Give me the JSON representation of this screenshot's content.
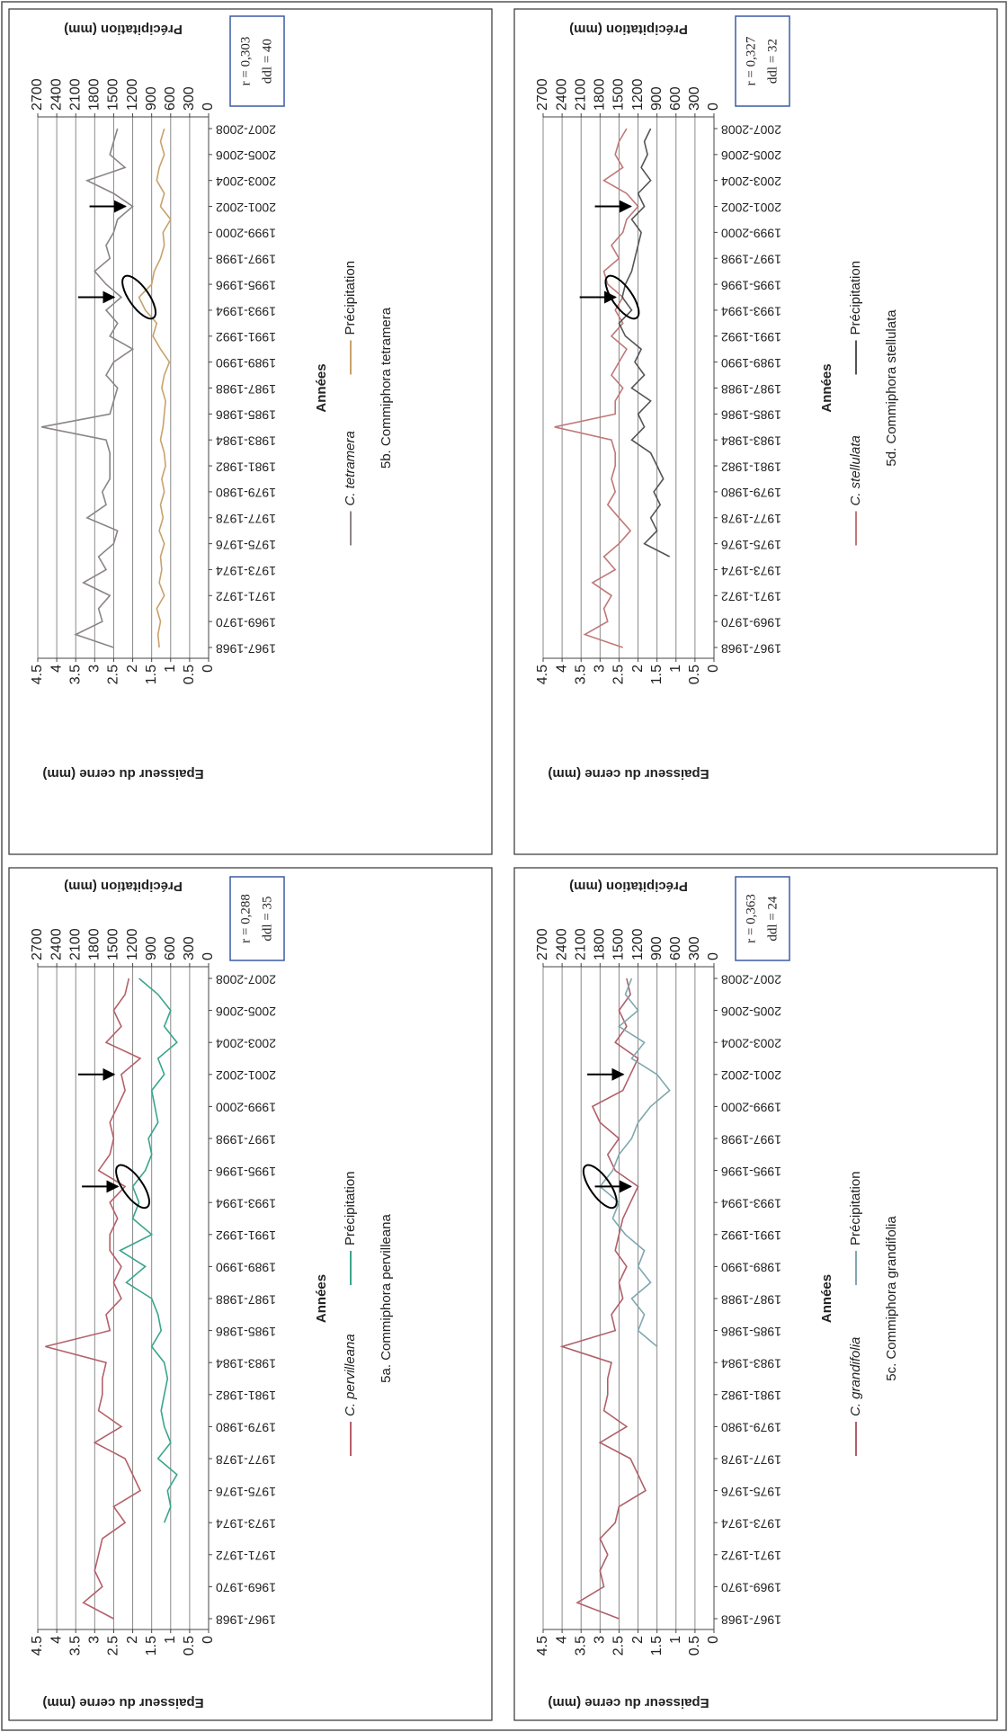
{
  "chart_data": [
    {
      "type": "line",
      "title": "5a. Commiphora pervilleana",
      "x_label": "Années",
      "y_label": "Epaisseur du cerne (mm)",
      "y2_label": "Précipitation (mm)",
      "annotations": [
        "r = 0,288",
        "ddl = 35"
      ],
      "categories": [
        "1967-1968",
        null,
        "1969-1970",
        null,
        "1971-1972",
        null,
        "1973-1974",
        null,
        "1975-1976",
        null,
        "1977-1978",
        null,
        "1979-1980",
        null,
        "1981-1982",
        null,
        "1983-1984",
        null,
        "1985-1986",
        null,
        "1987-1988",
        null,
        "1989-1990",
        null,
        "1991-1992",
        null,
        "1993-1994",
        null,
        "1995-1996",
        null,
        "1997-1998",
        null,
        "1999-2000",
        null,
        "2001-2002",
        null,
        "2003-2004",
        null,
        "2005-2006",
        null,
        "2007-2008"
      ],
      "series": [
        {
          "name": "C. pervilleana",
          "color": "#b5606a",
          "values": [
            2.5,
            3.3,
            2.8,
            3.0,
            2.9,
            2.8,
            2.2,
            2.5,
            1.8,
            2.0,
            2.2,
            3.0,
            2.3,
            2.9,
            2.8,
            2.8,
            2.7,
            4.3,
            2.6,
            2.7,
            2.3,
            2.5,
            2.3,
            2.6,
            2.6,
            2.4,
            2.6,
            2.2,
            2.9,
            2.6,
            2.5,
            2.6,
            2.4,
            2.2,
            2.3,
            1.8,
            2.7,
            2.3,
            2.5,
            2.2,
            2.1
          ]
        },
        {
          "name": "Précipitation",
          "color": "#3aa58c",
          "axis": "y2",
          "values": [
            null,
            null,
            null,
            null,
            null,
            null,
            700,
            600,
            650,
            500,
            800,
            600,
            700,
            750,
            700,
            650,
            700,
            900,
            750,
            800,
            900,
            1300,
            1000,
            1400,
            900,
            1200,
            1100,
            1200,
            1000,
            900,
            950,
            800,
            850,
            900,
            700,
            800,
            500,
            700,
            600,
            800,
            1100
          ]
        }
      ],
      "ylim": [
        0,
        4.5
      ],
      "yticks": [
        0,
        0.5,
        1,
        1.5,
        2,
        2.5,
        3,
        3.5,
        4,
        4.5
      ],
      "y2lim": [
        0,
        2700
      ],
      "y2ticks": [
        0,
        300,
        600,
        900,
        1200,
        1500,
        1800,
        2100,
        2400,
        2700
      ],
      "grid": true
    },
    {
      "type": "line",
      "title": "5b. Commiphora tetramera",
      "x_label": "Années",
      "y_label": "Epaisseur du cerne (mm)",
      "y2_label": "Précipitation (mm)",
      "annotations": [
        "r = 0,303",
        "ddl = 40"
      ],
      "categories": [
        "1967-1968",
        null,
        "1969-1970",
        null,
        "1971-1972",
        null,
        "1973-1974",
        null,
        "1975-1976",
        null,
        "1977-1978",
        null,
        "1979-1980",
        null,
        "1981-1982",
        null,
        "1983-1984",
        null,
        "1985-1986",
        null,
        "1987-1988",
        null,
        "1989-1990",
        null,
        "1991-1992",
        null,
        "1993-1994",
        null,
        "1995-1996",
        null,
        "1997-1998",
        null,
        "1999-2000",
        null,
        "2001-2002",
        null,
        "2003-2004",
        null,
        "2005-2006",
        null,
        "2007-2008"
      ],
      "series": [
        {
          "name": "C. tetramera",
          "color": "#8b8585",
          "values": [
            2.5,
            3.5,
            2.8,
            2.9,
            2.6,
            3.3,
            2.7,
            2.9,
            2.5,
            2.4,
            3.2,
            2.7,
            2.8,
            2.6,
            2.6,
            2.6,
            2.7,
            4.4,
            2.6,
            2.5,
            2.4,
            2.7,
            2.5,
            2.0,
            2.6,
            2.4,
            2.7,
            2.3,
            2.7,
            3.0,
            2.6,
            2.7,
            2.5,
            2.4,
            2.0,
            2.5,
            3.2,
            2.2,
            2.6,
            2.5,
            2.4
          ]
        },
        {
          "name": "Précipitation",
          "color": "#c9a26a",
          "axis": "y2",
          "values": [
            780,
            800,
            760,
            820,
            700,
            780,
            740,
            760,
            700,
            780,
            720,
            760,
            700,
            740,
            680,
            700,
            760,
            720,
            700,
            680,
            740,
            700,
            620,
            760,
            880,
            820,
            1000,
            1100,
            900,
            860,
            760,
            700,
            720,
            600,
            760,
            700,
            820,
            780,
            700,
            760,
            700
          ]
        }
      ],
      "ylim": [
        0,
        4.5
      ],
      "yticks": [
        0,
        0.5,
        1,
        1.5,
        2,
        2.5,
        3,
        3.5,
        4,
        4.5
      ],
      "y2lim": [
        0,
        2700
      ],
      "y2ticks": [
        0,
        300,
        600,
        900,
        1200,
        1500,
        1800,
        2100,
        2400,
        2700
      ],
      "grid": true
    },
    {
      "type": "line",
      "title": "5c. Commiphora grandifolia",
      "x_label": "Années",
      "y_label": "Epaisseur du cerne (mm)",
      "y2_label": "Précipitation (mm)",
      "annotations": [
        "r = 0,363",
        "ddl = 24"
      ],
      "categories": [
        "1967-1968",
        null,
        "1969-1970",
        null,
        "1971-1972",
        null,
        "1973-1974",
        null,
        "1975-1976",
        null,
        "1977-1978",
        null,
        "1979-1980",
        null,
        "1981-1982",
        null,
        "1983-1984",
        null,
        "1985-1986",
        null,
        "1987-1988",
        null,
        "1989-1990",
        null,
        "1991-1992",
        null,
        "1993-1994",
        null,
        "1995-1996",
        null,
        "1997-1998",
        null,
        "1999-2000",
        null,
        "2001-2002",
        null,
        "2003-2004",
        null,
        "2005-2006",
        null,
        "2007-2008"
      ],
      "series": [
        {
          "name": "C. grandifolia",
          "color": "#b0606a",
          "values": [
            2.5,
            3.6,
            2.9,
            3.0,
            2.8,
            3.0,
            2.6,
            2.5,
            1.8,
            2.0,
            2.2,
            3.0,
            2.3,
            2.9,
            2.8,
            2.8,
            2.7,
            4.0,
            2.6,
            2.7,
            2.4,
            2.5,
            2.3,
            2.6,
            2.5,
            2.4,
            2.2,
            2.0,
            2.6,
            2.8,
            2.5,
            3.0,
            3.2,
            2.4,
            2.2,
            2.0,
            2.6,
            2.3,
            2.5,
            2.2,
            2.3
          ]
        },
        {
          "name": "Précipitation",
          "color": "#7fa8b0",
          "axis": "y2",
          "values": [
            null,
            null,
            null,
            null,
            null,
            null,
            null,
            null,
            null,
            null,
            null,
            null,
            null,
            null,
            null,
            null,
            null,
            900,
            1200,
            1100,
            1300,
            1000,
            1200,
            1100,
            1400,
            1600,
            1500,
            1800,
            1600,
            1500,
            1300,
            1200,
            1000,
            700,
            900,
            1300,
            1100,
            1500,
            1200,
            1400,
            1300
          ]
        }
      ],
      "ylim": [
        0,
        4.5
      ],
      "yticks": [
        0,
        0.5,
        1,
        1.5,
        2,
        2.5,
        3,
        3.5,
        4,
        4.5
      ],
      "y2lim": [
        0,
        2700
      ],
      "y2ticks": [
        0,
        300,
        600,
        900,
        1200,
        1500,
        1800,
        2100,
        2400,
        2700
      ],
      "grid": true
    },
    {
      "type": "line",
      "title": "5d. Commiphora stellulata",
      "x_label": "Années",
      "y_label": "Epaisseur du cerne (mm)",
      "y2_label": "Précipitation (mm)",
      "annotations": [
        "r = 0,327",
        "ddl = 32"
      ],
      "categories": [
        "1967-1968",
        null,
        "1969-1970",
        null,
        "1971-1972",
        null,
        "1973-1974",
        null,
        "1975-1976",
        null,
        "1977-1978",
        null,
        "1979-1980",
        null,
        "1981-1982",
        null,
        "1983-1984",
        null,
        "1985-1986",
        null,
        "1987-1988",
        null,
        "1989-1990",
        null,
        "1991-1992",
        null,
        "1993-1994",
        null,
        "1995-1996",
        null,
        "1997-1998",
        null,
        "1999-2000",
        null,
        "2001-2002",
        null,
        "2003-2004",
        null,
        "2005-2006",
        null,
        "2007-2008"
      ],
      "series": [
        {
          "name": "C. stellulata",
          "color": "#c07878",
          "values": [
            2.4,
            3.4,
            2.8,
            2.9,
            2.7,
            3.2,
            2.6,
            2.9,
            2.5,
            2.2,
            2.5,
            2.8,
            2.6,
            2.7,
            2.6,
            2.6,
            2.7,
            4.2,
            2.6,
            2.6,
            2.4,
            2.7,
            2.5,
            2.3,
            2.7,
            2.4,
            2.6,
            2.4,
            2.8,
            2.9,
            2.5,
            2.7,
            2.4,
            2.3,
            2.0,
            2.3,
            2.9,
            2.4,
            2.6,
            2.5,
            2.3
          ]
        },
        {
          "name": "Précipitation",
          "color": "#555555",
          "axis": "y2",
          "values": [
            null,
            null,
            null,
            null,
            null,
            null,
            null,
            700,
            1100,
            900,
            1000,
            850,
            950,
            800,
            900,
            1000,
            1300,
            1100,
            1200,
            1000,
            1300,
            1100,
            1250,
            1150,
            1400,
            1500,
            1300,
            1450,
            1400,
            1300,
            1250,
            1200,
            1150,
            1300,
            1100,
            1200,
            1000,
            1150,
            1050,
            1100,
            1000
          ]
        }
      ],
      "ylim": [
        0,
        4.5
      ],
      "yticks": [
        0,
        0.5,
        1,
        1.5,
        2,
        2.5,
        3,
        3.5,
        4,
        4.5
      ],
      "y2lim": [
        0,
        2700
      ],
      "y2ticks": [
        0,
        300,
        600,
        900,
        1200,
        1500,
        1800,
        2100,
        2400,
        2700
      ],
      "grid": true
    }
  ]
}
